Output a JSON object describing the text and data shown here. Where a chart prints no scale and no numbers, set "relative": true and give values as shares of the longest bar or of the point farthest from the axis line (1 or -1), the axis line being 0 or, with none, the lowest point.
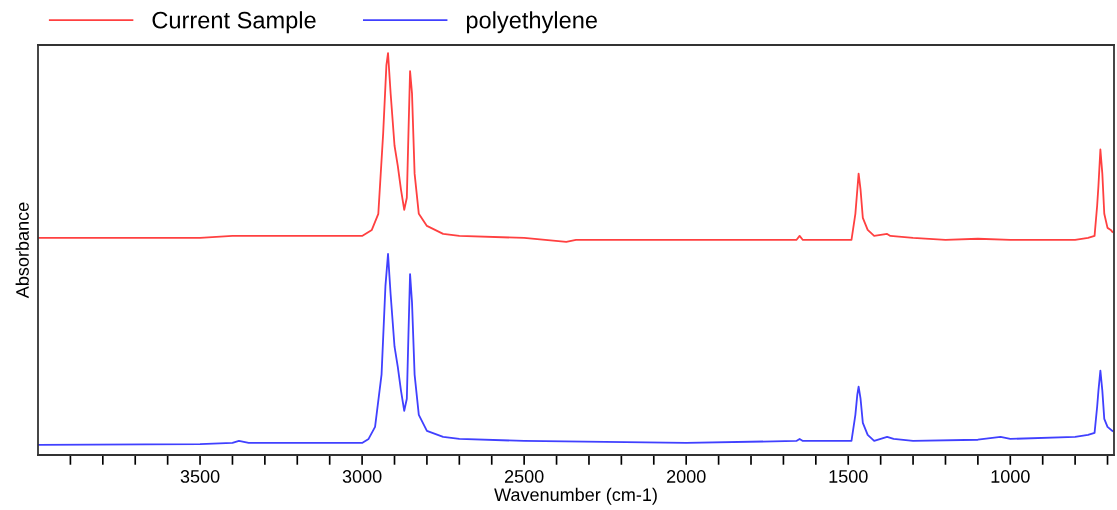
{
  "chart_data": {
    "type": "line",
    "xlabel": "Wavenumber (cm-1)",
    "ylabel": "Absorbance",
    "relative": true,
    "legend": "top left",
    "grid": false,
    "marker": "none",
    "line_style": "solid",
    "xlim": [
      4000,
      680
    ],
    "xticks": [
      {
        "value": 3900,
        "label": null
      },
      {
        "value": 3800,
        "label": null
      },
      {
        "value": 3700,
        "label": null
      },
      {
        "value": 3600,
        "label": null
      },
      3500,
      {
        "value": 3400,
        "label": null
      },
      {
        "value": 3300,
        "label": null
      },
      {
        "value": 3200,
        "label": null
      },
      {
        "value": 3100,
        "label": null
      },
      3000,
      {
        "value": 2900,
        "label": null
      },
      {
        "value": 2800,
        "label": null
      },
      {
        "value": 2700,
        "label": null
      },
      {
        "value": 2600,
        "label": null
      },
      2500,
      {
        "value": 2400,
        "label": null
      },
      {
        "value": 2300,
        "label": null
      },
      {
        "value": 2200,
        "label": null
      },
      {
        "value": 2100,
        "label": null
      },
      2000,
      {
        "value": 1900,
        "label": null
      },
      {
        "value": 1800,
        "label": null
      },
      {
        "value": 1700,
        "label": null
      },
      {
        "value": 1600,
        "label": null
      },
      1500,
      {
        "value": 1400,
        "label": null
      },
      {
        "value": 1300,
        "label": null
      },
      {
        "value": 1200,
        "label": null
      },
      {
        "value": 1100,
        "label": null
      },
      1000,
      {
        "value": 900,
        "label": null
      },
      {
        "value": 800,
        "label": null
      },
      {
        "value": 700,
        "label": null
      }
    ],
    "series": [
      {
        "name": "Current Sample",
        "color": "#ff4040",
        "x": [
          4000,
          3500,
          3400,
          3000,
          2970,
          2950,
          2935,
          2925,
          2920,
          2912,
          2900,
          2890,
          2880,
          2870,
          2862,
          2857,
          2852,
          2846,
          2838,
          2825,
          2800,
          2750,
          2700,
          2500,
          2370,
          2340,
          2000,
          1660,
          1650,
          1640,
          1490,
          1478,
          1472,
          1468,
          1462,
          1455,
          1440,
          1420,
          1380,
          1370,
          1300,
          1200,
          1100,
          1000,
          800,
          760,
          740,
          732,
          728,
          722,
          716,
          710,
          700,
          690,
          685
        ],
        "values": [
          0.54,
          0.54,
          0.545,
          0.545,
          0.56,
          0.6,
          0.8,
          0.97,
          1.0,
          0.9,
          0.77,
          0.72,
          0.66,
          0.61,
          0.64,
          0.8,
          0.955,
          0.9,
          0.7,
          0.6,
          0.57,
          0.55,
          0.545,
          0.54,
          0.53,
          0.535,
          0.535,
          0.535,
          0.545,
          0.535,
          0.535,
          0.6,
          0.66,
          0.7,
          0.66,
          0.59,
          0.56,
          0.545,
          0.55,
          0.545,
          0.54,
          0.535,
          0.538,
          0.535,
          0.535,
          0.54,
          0.545,
          0.62,
          0.67,
          0.76,
          0.7,
          0.6,
          0.565,
          0.56,
          0.555
        ]
      },
      {
        "name": "polyethylene",
        "color": "#4040ff",
        "x": [
          4000,
          3500,
          3400,
          3380,
          3350,
          3000,
          2980,
          2960,
          2940,
          2928,
          2920,
          2912,
          2900,
          2890,
          2880,
          2870,
          2862,
          2857,
          2852,
          2846,
          2838,
          2825,
          2800,
          2750,
          2700,
          2500,
          2000,
          1660,
          1650,
          1640,
          1490,
          1478,
          1472,
          1468,
          1462,
          1455,
          1440,
          1420,
          1380,
          1360,
          1300,
          1100,
          1030,
          1000,
          800,
          760,
          740,
          732,
          728,
          722,
          716,
          710,
          700,
          685
        ],
        "values": [
          0.025,
          0.027,
          0.03,
          0.035,
          0.03,
          0.03,
          0.04,
          0.07,
          0.2,
          0.42,
          0.5,
          0.4,
          0.27,
          0.22,
          0.16,
          0.11,
          0.14,
          0.3,
          0.45,
          0.38,
          0.2,
          0.1,
          0.06,
          0.045,
          0.04,
          0.035,
          0.03,
          0.035,
          0.04,
          0.035,
          0.035,
          0.1,
          0.15,
          0.17,
          0.14,
          0.08,
          0.05,
          0.035,
          0.045,
          0.04,
          0.035,
          0.038,
          0.045,
          0.04,
          0.045,
          0.05,
          0.055,
          0.12,
          0.16,
          0.21,
          0.16,
          0.09,
          0.07,
          0.06
        ]
      }
    ]
  }
}
